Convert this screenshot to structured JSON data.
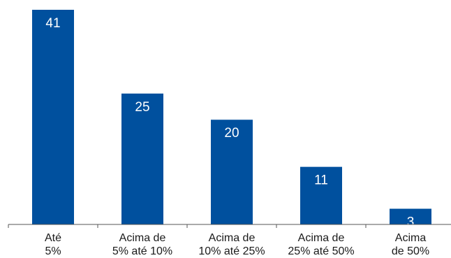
{
  "chart_data": {
    "type": "bar",
    "categories": [
      [
        "Até",
        "5%"
      ],
      [
        "Acima de",
        "5% até 10%"
      ],
      [
        "Acima de",
        "10% até 25%"
      ],
      [
        "Acima de",
        "25% até 50%"
      ],
      [
        "Acima",
        "de 50%"
      ]
    ],
    "values": [
      41,
      25,
      20,
      11,
      3
    ],
    "value_labels": [
      "41",
      "25",
      "20",
      "11",
      "3"
    ],
    "ylim": [
      0,
      41
    ],
    "title": "",
    "xlabel": "",
    "ylabel": "",
    "grid": false,
    "legend": "none",
    "colors": {
      "bar": "#00509e",
      "axis": "#555555",
      "label": "#1a1a1a",
      "value_label": "#ffffff"
    }
  }
}
